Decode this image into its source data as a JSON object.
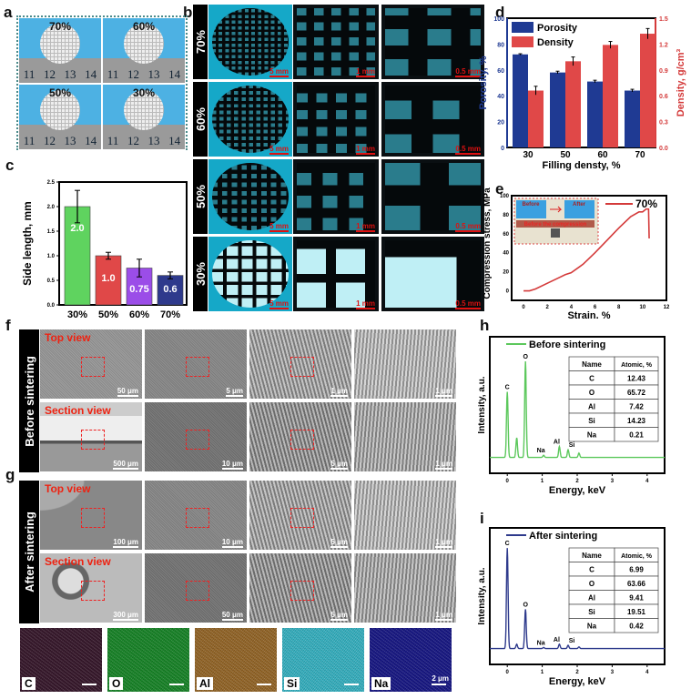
{
  "labels": {
    "a": "a",
    "b": "b",
    "c": "c",
    "d": "d",
    "e": "e",
    "f": "f",
    "g": "g",
    "h": "h",
    "i": "i"
  },
  "panel_a": {
    "photos": [
      {
        "pct": "70%"
      },
      {
        "pct": "60%"
      },
      {
        "pct": "50%"
      },
      {
        "pct": "30%"
      }
    ],
    "ruler": [
      "11",
      "12",
      "13",
      "14"
    ]
  },
  "panel_b": {
    "rows": [
      {
        "label": "70%",
        "density": 9
      },
      {
        "label": "60%",
        "density": 8
      },
      {
        "label": "50%",
        "density": 6
      },
      {
        "label": "30%",
        "density": 4
      }
    ],
    "scalebars": [
      "5 mm",
      "1 mm",
      "0.5 mm"
    ]
  },
  "panel_f": {
    "side": "Before sintering",
    "rows": [
      {
        "tag": "Top view",
        "scales": [
          "50 μm",
          "5 μm",
          "1 μm",
          "1 μm"
        ]
      },
      {
        "tag": "Section view",
        "scales": [
          "500 μm",
          "10 μm",
          "5 μm",
          "1 μm"
        ]
      }
    ]
  },
  "panel_g": {
    "side": "After sintering",
    "rows": [
      {
        "tag": "Top view",
        "scales": [
          "100 μm",
          "10 μm",
          "5 μm",
          "1 μm"
        ]
      },
      {
        "tag": "Section view",
        "scales": [
          "300 μm",
          "50 μm",
          "5 μm",
          "1 μm"
        ]
      }
    ]
  },
  "maps": {
    "tiles": [
      {
        "el": "C",
        "color": "#3a1a2e"
      },
      {
        "el": "O",
        "color": "#1a8a2a"
      },
      {
        "el": "Al",
        "color": "#9a6a2a"
      },
      {
        "el": "Si",
        "color": "#3ab8c8"
      },
      {
        "el": "Na",
        "color": "#1a1a8a"
      }
    ],
    "scale": "2 μm"
  },
  "chart_data": [
    {
      "id": "c",
      "type": "bar",
      "categories": [
        "30%",
        "50%",
        "60%",
        "70%"
      ],
      "values": [
        2.0,
        1.0,
        0.75,
        0.6
      ],
      "errors": [
        0.33,
        0.07,
        0.18,
        0.07
      ],
      "data_labels": [
        "2.0",
        "1.0",
        "0.75",
        "0.6"
      ],
      "colors": [
        "#5fd35f",
        "#e04848",
        "#9b4de8",
        "#2e3a8c"
      ],
      "ylabel": "Side length, mm",
      "ylim": [
        0,
        2.5
      ],
      "yticks": [
        "0.0",
        "0.5",
        "1.0",
        "1.5",
        "2.0",
        "2.5"
      ]
    },
    {
      "id": "d",
      "type": "bar",
      "categories": [
        "30",
        "50",
        "60",
        "70"
      ],
      "xlabel": "Filling densty, %",
      "series": [
        {
          "name": "Porosity",
          "values": [
            72,
            58,
            51,
            44
          ],
          "errors": [
            0.5,
            1,
            1,
            1
          ],
          "color": "#1f3a93",
          "axis": "left"
        },
        {
          "name": "Density",
          "values": [
            0.66,
            1.0,
            1.19,
            1.32
          ],
          "errors": [
            0.05,
            0.05,
            0.04,
            0.06
          ],
          "color": "#e04848",
          "axis": "right"
        }
      ],
      "ylabel_left": "Porosity, %",
      "ylabel_right": "Density, g/cm³",
      "ylim_left": [
        0,
        100
      ],
      "ylim_right": [
        0,
        1.5
      ],
      "yticks_left": [
        "0",
        "20",
        "40",
        "60",
        "80",
        "100"
      ],
      "yticks_right": [
        "0.0",
        "0.3",
        "0.6",
        "0.9",
        "1.2",
        "1.5"
      ],
      "legend": "top-left"
    },
    {
      "id": "e",
      "type": "line",
      "xlabel": "Strain, %",
      "ylabel": "Compression stress, MPa",
      "xlim": [
        -1,
        12
      ],
      "ylim": [
        -10,
        100
      ],
      "xticks": [
        "0",
        "2",
        "4",
        "6",
        "8",
        "10",
        "12"
      ],
      "yticks": [
        "0",
        "20",
        "40",
        "60",
        "80",
        "100"
      ],
      "series": [
        {
          "name": "70%",
          "color": "#d43a3a",
          "x": [
            0,
            0.5,
            1,
            2,
            3,
            3.5,
            4,
            5,
            6,
            7,
            8,
            9,
            9.7,
            10,
            10.3,
            10.5,
            10.55
          ],
          "y": [
            0,
            0,
            2,
            8,
            14,
            17,
            19,
            28,
            40,
            53,
            66,
            78,
            83,
            83,
            86,
            86,
            55
          ]
        }
      ],
      "inset": {
        "before": "Before",
        "after": "After",
        "caption": "Before the compression"
      }
    },
    {
      "id": "h",
      "type": "line",
      "title": "Before sintering",
      "xlabel": "Energy, keV",
      "ylabel": "Intensity, a.u.",
      "xlim": [
        -0.5,
        4.5
      ],
      "xticks": [
        "0",
        "1",
        "2",
        "3",
        "4"
      ],
      "color": "#5cc85c",
      "peaks": [
        {
          "label": "C",
          "e": 0.0,
          "h": 0.6
        },
        {
          "label": "",
          "e": 0.27,
          "h": 0.18
        },
        {
          "label": "O",
          "e": 0.52,
          "h": 0.88
        },
        {
          "label": "Na",
          "e": 1.04,
          "h": 0.02
        },
        {
          "label": "Al",
          "e": 1.49,
          "h": 0.1
        },
        {
          "label": "Si",
          "e": 1.74,
          "h": 0.07
        },
        {
          "label": "",
          "e": 2.05,
          "h": 0.04
        }
      ],
      "table": {
        "headers": [
          "Name",
          "Atomic, %"
        ],
        "rows": [
          [
            "C",
            "12.43"
          ],
          [
            "O",
            "65.72"
          ],
          [
            "Al",
            "7.42"
          ],
          [
            "Si",
            "14.23"
          ],
          [
            "Na",
            "0.21"
          ]
        ]
      }
    },
    {
      "id": "i",
      "type": "line",
      "title": "After sintering",
      "xlabel": "Energy, keV",
      "ylabel": "Intensity, a.u.",
      "xlim": [
        -0.5,
        4.5
      ],
      "xticks": [
        "0",
        "1",
        "2",
        "3",
        "4"
      ],
      "color": "#2e3a8c",
      "peaks": [
        {
          "label": "C",
          "e": 0.0,
          "h": 0.92
        },
        {
          "label": "",
          "e": 0.27,
          "h": 0.04
        },
        {
          "label": "O",
          "e": 0.52,
          "h": 0.36
        },
        {
          "label": "Na",
          "e": 1.04,
          "h": 0.01
        },
        {
          "label": "Al",
          "e": 1.49,
          "h": 0.04
        },
        {
          "label": "Si",
          "e": 1.74,
          "h": 0.03
        },
        {
          "label": "",
          "e": 2.05,
          "h": 0.015
        }
      ],
      "table": {
        "headers": [
          "Name",
          "Atomic, %"
        ],
        "rows": [
          [
            "C",
            "6.99"
          ],
          [
            "O",
            "63.66"
          ],
          [
            "Al",
            "9.41"
          ],
          [
            "Si",
            "19.51"
          ],
          [
            "Na",
            "0.42"
          ]
        ]
      }
    }
  ]
}
